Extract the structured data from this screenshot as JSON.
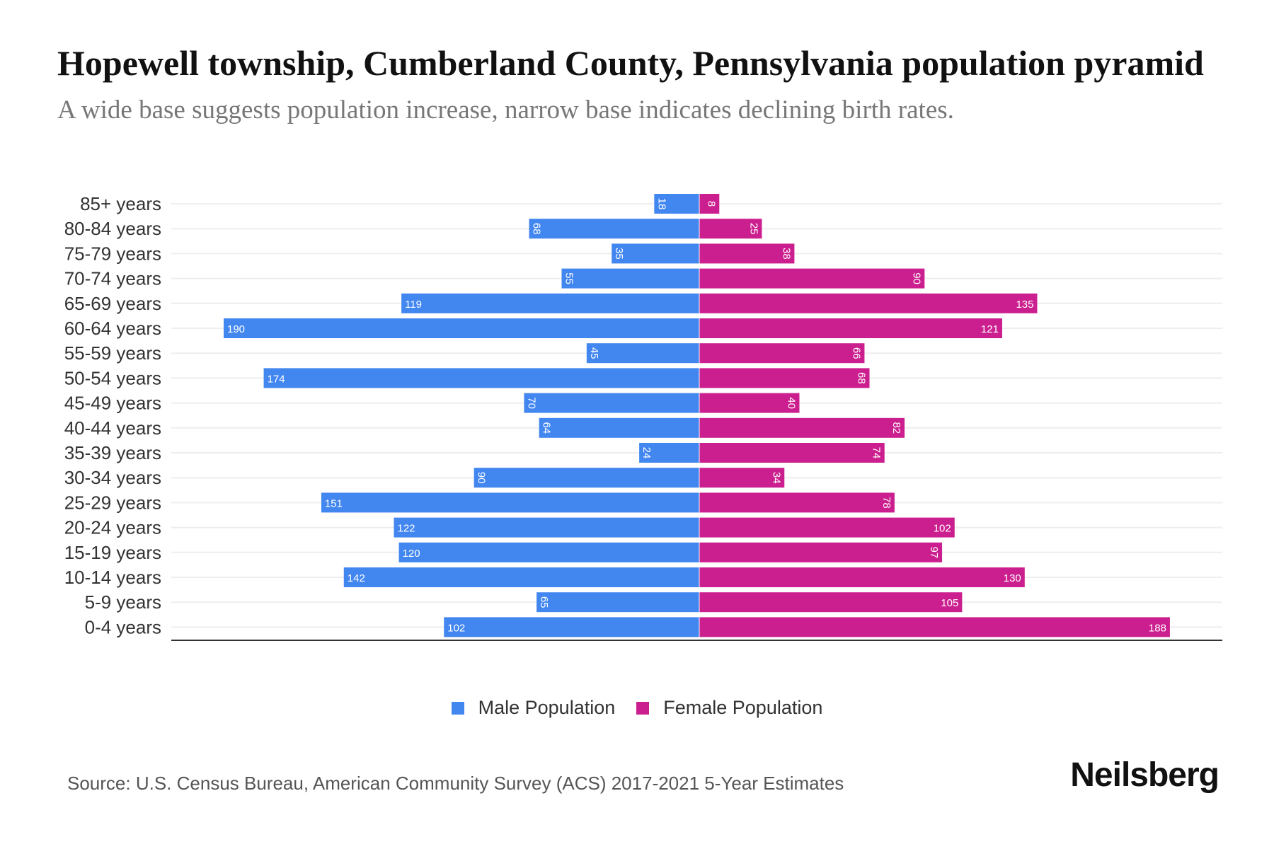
{
  "title": "Hopewell township, Cumberland County, Pennsylvania population pyramid",
  "subtitle": "A wide base suggests population increase, narrow base indicates declining birth rates.",
  "source": "Source: U.S. Census Bureau, American Community Survey (ACS) 2017-2021 5-Year Estimates",
  "logo": "Neilsberg",
  "colors": {
    "male": "#4286f0",
    "female": "#cc1f8f"
  },
  "chart_data": {
    "type": "bar",
    "orientation": "horizontal-pyramid",
    "categories": [
      "85+ years",
      "80-84 years",
      "75-79 years",
      "70-74 years",
      "65-69 years",
      "60-64 years",
      "55-59 years",
      "50-54 years",
      "45-49 years",
      "40-44 years",
      "35-39 years",
      "30-34 years",
      "25-29 years",
      "20-24 years",
      "15-19 years",
      "10-14 years",
      "5-9 years",
      "0-4 years"
    ],
    "series": [
      {
        "name": "Male Population",
        "values": [
          18,
          68,
          35,
          55,
          119,
          190,
          45,
          174,
          70,
          64,
          24,
          90,
          151,
          122,
          120,
          142,
          65,
          102
        ]
      },
      {
        "name": "Female Population",
        "values": [
          8,
          25,
          38,
          90,
          135,
          121,
          66,
          68,
          40,
          82,
          74,
          34,
          78,
          102,
          97,
          130,
          105,
          188
        ]
      }
    ],
    "xlim": [
      -210,
      210
    ],
    "legend": "bottom-center",
    "grid": true
  }
}
